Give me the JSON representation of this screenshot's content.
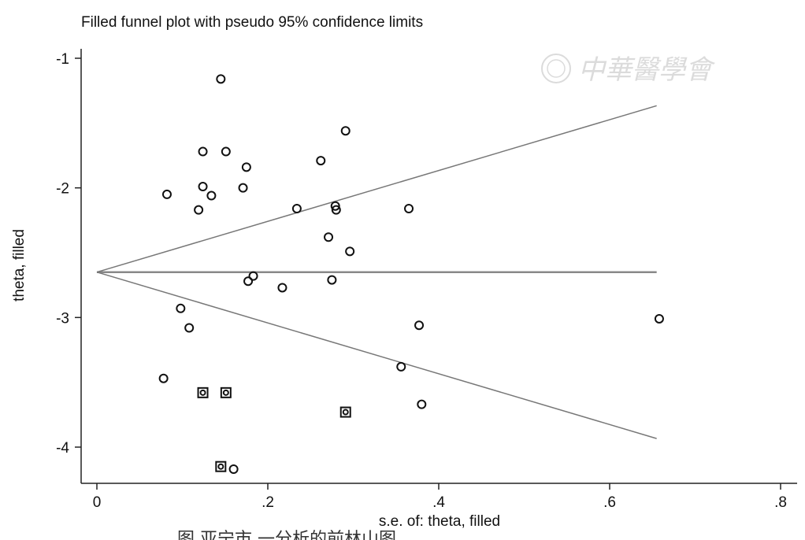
{
  "chart_data": {
    "type": "scatter",
    "title": "Filled funnel plot with pseudo 95% confidence limits",
    "xlabel": "s.e. of: theta, filled",
    "ylabel": "theta, filled",
    "xlim": [
      0,
      0.8
    ],
    "ylim": [
      -4.2,
      -0.95
    ],
    "x_ticks": [
      0,
      0.2,
      0.4,
      0.6,
      0.8
    ],
    "x_tick_labels": [
      "0",
      ".2",
      ".4",
      ".6",
      ".8"
    ],
    "y_ticks": [
      -1,
      -2,
      -3,
      -4
    ],
    "y_tick_labels": [
      "-1",
      "-2",
      "-3",
      "-4"
    ],
    "pooled_estimate": -2.65,
    "funnel_se_max": 0.655,
    "series": [
      {
        "marker": "circle",
        "points": [
          {
            "x": 0.145,
            "y": -1.16
          },
          {
            "x": 0.124,
            "y": -1.72
          },
          {
            "x": 0.151,
            "y": -1.72
          },
          {
            "x": 0.291,
            "y": -1.56
          },
          {
            "x": 0.175,
            "y": -1.84
          },
          {
            "x": 0.262,
            "y": -1.79
          },
          {
            "x": 0.082,
            "y": -2.05
          },
          {
            "x": 0.124,
            "y": -1.99
          },
          {
            "x": 0.134,
            "y": -2.06
          },
          {
            "x": 0.171,
            "y": -2.0
          },
          {
            "x": 0.119,
            "y": -2.17
          },
          {
            "x": 0.234,
            "y": -2.16
          },
          {
            "x": 0.279,
            "y": -2.14
          },
          {
            "x": 0.28,
            "y": -2.17
          },
          {
            "x": 0.365,
            "y": -2.16
          },
          {
            "x": 0.271,
            "y": -2.38
          },
          {
            "x": 0.296,
            "y": -2.49
          },
          {
            "x": 0.183,
            "y": -2.68
          },
          {
            "x": 0.177,
            "y": -2.72
          },
          {
            "x": 0.217,
            "y": -2.77
          },
          {
            "x": 0.275,
            "y": -2.71
          },
          {
            "x": 0.098,
            "y": -2.93
          },
          {
            "x": 0.108,
            "y": -3.08
          },
          {
            "x": 0.377,
            "y": -3.06
          },
          {
            "x": 0.658,
            "y": -3.01
          },
          {
            "x": 0.356,
            "y": -3.38
          },
          {
            "x": 0.078,
            "y": -3.47
          },
          {
            "x": 0.38,
            "y": -3.67
          },
          {
            "x": 0.16,
            "y": -4.17
          }
        ]
      },
      {
        "marker": "square-circle",
        "points": [
          {
            "x": 0.124,
            "y": -3.58
          },
          {
            "x": 0.151,
            "y": -3.58
          },
          {
            "x": 0.291,
            "y": -3.73
          },
          {
            "x": 0.145,
            "y": -4.15
          }
        ]
      }
    ]
  },
  "caption": "图             亚宁市      一分析的前林山图",
  "watermark": {
    "text": "中華醫學會"
  }
}
